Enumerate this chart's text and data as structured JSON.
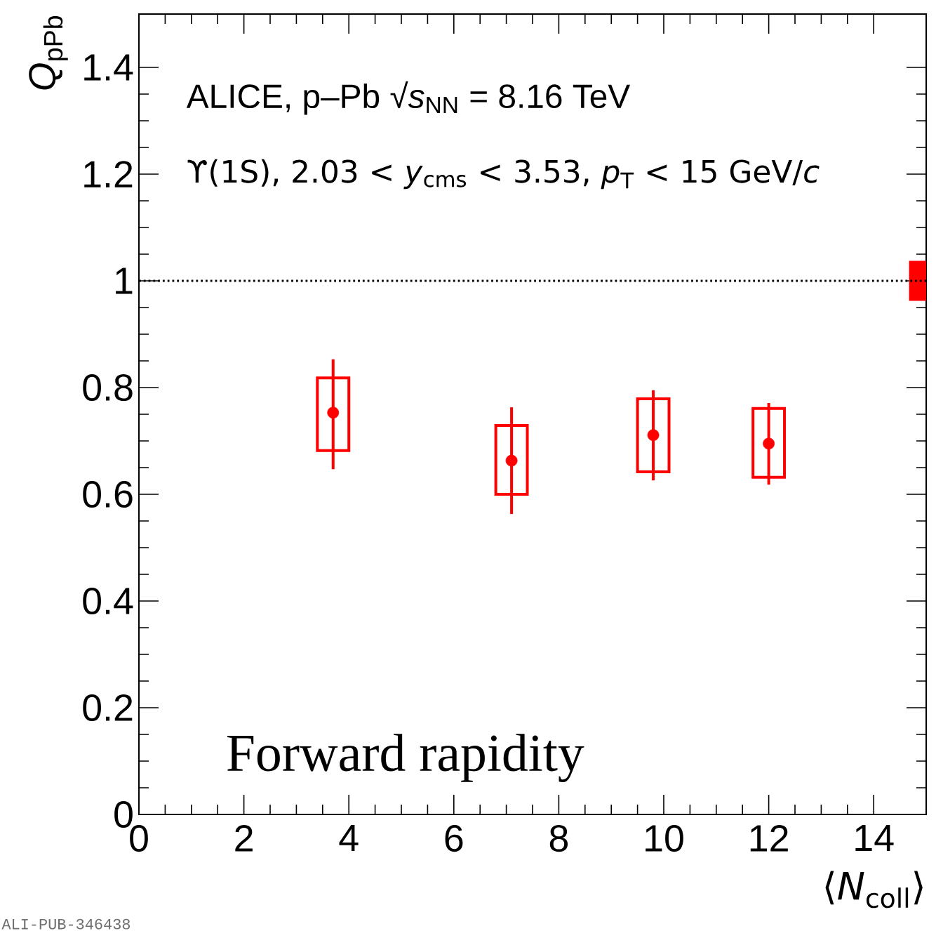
{
  "chart_data": {
    "type": "scatter",
    "xlabel": "⟨*N*$_{coll}$⟩",
    "ylabel": "*Q*$_{pPb}$",
    "annotations": [
      "ALICE, p–Pb √*s*$_{NN}$ = 8.16 TeV",
      "ϒ(1S), 2.03 < *y*$_{cms}$ < 3.53, *p*$_{T}$ < 15 GeV/*c*",
      "Forward rapidity",
      "ALI-PUB-346438"
    ],
    "xlim": [
      0,
      15
    ],
    "ylim": [
      0,
      1.5
    ],
    "xticks": [
      0,
      2,
      4,
      6,
      8,
      10,
      12,
      14
    ],
    "yticks": [
      0,
      0.2,
      0.4,
      0.6,
      0.8,
      1,
      1.2,
      1.4
    ],
    "marker": "circle",
    "ref_lines": [
      {
        "axis": "y",
        "value": 1,
        "line_style": "dotted",
        "color": "#000000"
      }
    ],
    "series": [
      {
        "color": "#ff0000",
        "x": [
          3.7,
          7.1,
          9.8,
          12.0
        ],
        "values": [
          0.753,
          0.663,
          0.711,
          0.695
        ],
        "errors": [
          [
            0.647,
            0.853
          ],
          [
            0.563,
            0.763
          ],
          [
            0.626,
            0.795
          ],
          [
            0.618,
            0.771
          ]
        ]
      },
      {
        "type": "bar",
        "color": "#ff0000",
        "x": [
          3.7,
          7.1,
          9.8,
          12.0
        ],
        "base": [
          0.682,
          0.6,
          0.642,
          0.632
        ],
        "values": [
          0.136,
          0.129,
          0.137,
          0.129
        ]
      },
      {
        "type": "bar",
        "color": "#ff0000",
        "colors": [
          "#ff0000"
        ],
        "x": [
          15
        ],
        "base": [
          0.965
        ],
        "values": [
          0.07
        ]
      }
    ]
  }
}
